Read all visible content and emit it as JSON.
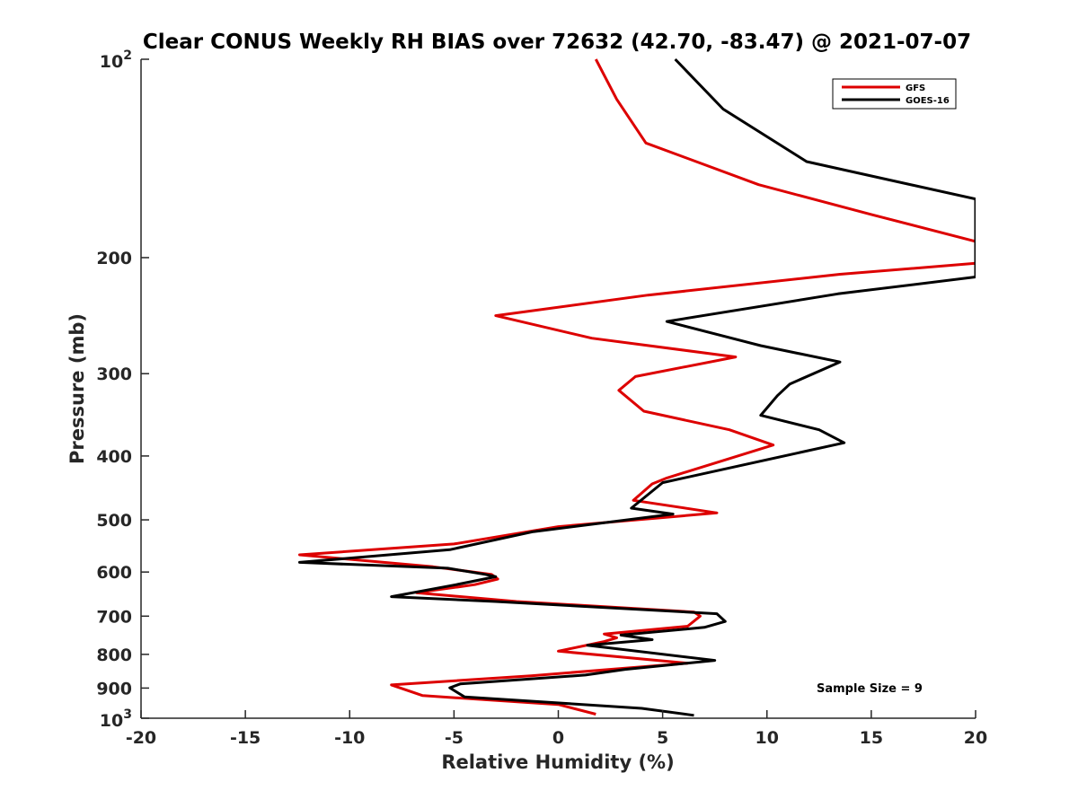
{
  "chart_data": {
    "type": "line",
    "title": "Clear CONUS Weekly RH BIAS over 72632 (42.70, -83.47) @ 2021-07-07",
    "xlabel": "Relative Humidity (%)",
    "ylabel": "Pressure (mb)",
    "xlim": [
      -20,
      20
    ],
    "ylim": [
      100,
      1000
    ],
    "yscale": "log",
    "y_reversed": true,
    "grid": false,
    "legend_position": "top-right",
    "x_ticks": [
      "-20",
      "-15",
      "-10",
      "-5",
      "0",
      "5",
      "10",
      "15",
      "20"
    ],
    "y_ticks": [
      {
        "value": 100,
        "base": "10",
        "exp": "2"
      },
      {
        "value": 200,
        "label": "200"
      },
      {
        "value": 300,
        "label": "300"
      },
      {
        "value": 400,
        "label": "400"
      },
      {
        "value": 500,
        "label": "500"
      },
      {
        "value": 600,
        "label": "600"
      },
      {
        "value": 700,
        "label": "700"
      },
      {
        "value": 800,
        "label": "800"
      },
      {
        "value": 900,
        "label": "900"
      },
      {
        "value": 1000,
        "base": "10",
        "exp": "3"
      }
    ],
    "annotation": "Sample Size = 9",
    "series": [
      {
        "name": "GFS",
        "color": "#dd0000",
        "points": [
          [
            1.8,
            100
          ],
          [
            2.8,
            115
          ],
          [
            4.2,
            134
          ],
          [
            9.6,
            155
          ],
          [
            15,
            172
          ],
          [
            20,
            189
          ],
          [
            20,
            204
          ],
          [
            13.5,
            212
          ],
          [
            4.3,
            228
          ],
          [
            -3,
            245
          ],
          [
            1.6,
            265
          ],
          [
            8.5,
            283
          ],
          [
            3.7,
            303
          ],
          [
            2.9,
            318
          ],
          [
            4.1,
            342
          ],
          [
            8.2,
            365
          ],
          [
            10.3,
            385
          ],
          [
            5.2,
            432
          ],
          [
            4.5,
            441
          ],
          [
            3.6,
            467
          ],
          [
            7.6,
            488
          ],
          [
            0,
            512
          ],
          [
            -5,
            544
          ],
          [
            -12.4,
            565
          ],
          [
            -6,
            589
          ],
          [
            -3.2,
            605
          ],
          [
            -2.9,
            615
          ],
          [
            -4,
            627
          ],
          [
            -6.8,
            645
          ],
          [
            -2,
            665
          ],
          [
            6.5,
            690
          ],
          [
            6.8,
            700
          ],
          [
            6.2,
            725
          ],
          [
            2.2,
            745
          ],
          [
            2.8,
            755
          ],
          [
            2.2,
            765
          ],
          [
            0,
            791
          ],
          [
            6.2,
            825
          ],
          [
            -1.3,
            862
          ],
          [
            -8,
            890
          ],
          [
            -6.5,
            924
          ],
          [
            0,
            953
          ],
          [
            1.8,
            986
          ]
        ]
      },
      {
        "name": "GOES-16",
        "color": "#000000",
        "points": [
          [
            5.6,
            100
          ],
          [
            7.9,
            119
          ],
          [
            11.9,
            143
          ],
          [
            20,
            163
          ],
          [
            20,
            214
          ],
          [
            13.4,
            227
          ],
          [
            5.2,
            250
          ],
          [
            9.7,
            272
          ],
          [
            13.5,
            288
          ],
          [
            11.1,
            311
          ],
          [
            10.5,
            324
          ],
          [
            9.7,
            347
          ],
          [
            12.5,
            365
          ],
          [
            13.7,
            382
          ],
          [
            5,
            439
          ],
          [
            3.5,
            480
          ],
          [
            5.5,
            490
          ],
          [
            -1.2,
            521
          ],
          [
            -5.2,
            555
          ],
          [
            -12.4,
            580
          ],
          [
            -5.3,
            592
          ],
          [
            -3.5,
            605
          ],
          [
            -3,
            610
          ],
          [
            -5,
            628
          ],
          [
            -8,
            654
          ],
          [
            -3,
            665
          ],
          [
            7.6,
            694
          ],
          [
            8,
            713
          ],
          [
            7,
            728
          ],
          [
            3,
            748
          ],
          [
            4.5,
            760
          ],
          [
            1.4,
            775
          ],
          [
            7.5,
            817
          ],
          [
            3.2,
            843
          ],
          [
            1.3,
            860
          ],
          [
            -4.7,
            887
          ],
          [
            -5.2,
            899
          ],
          [
            -4.5,
            928
          ],
          [
            4,
            966
          ],
          [
            6.5,
            990
          ]
        ]
      }
    ]
  }
}
